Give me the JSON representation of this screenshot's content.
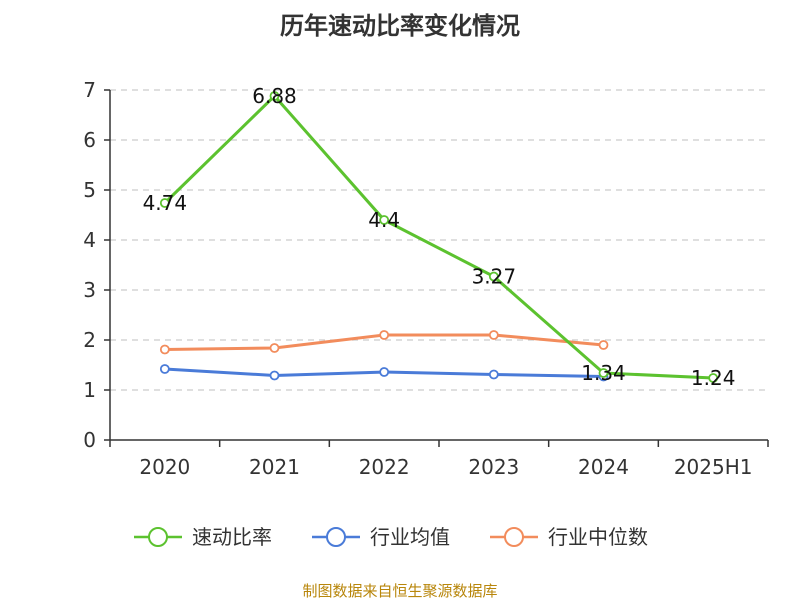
{
  "chart_data": {
    "type": "line",
    "title": "历年速动比率变化情况",
    "categories": [
      "2020",
      "2021",
      "2022",
      "2023",
      "2024",
      "2025H1"
    ],
    "ylim": [
      0,
      7
    ],
    "yticks": [
      0,
      1,
      2,
      3,
      4,
      5,
      6,
      7
    ],
    "grid": true,
    "legend_position": "bottom",
    "series": [
      {
        "name": "速动比率",
        "color": "#5cc22f",
        "values": [
          4.74,
          6.88,
          4.4,
          3.27,
          1.34,
          1.24
        ],
        "data_labels": [
          "4.74",
          "6.88",
          "4.4",
          "3.27",
          "1.34",
          "1.24"
        ]
      },
      {
        "name": "行业均值",
        "color": "#4a7bd8",
        "values": [
          1.42,
          1.29,
          1.36,
          1.31,
          1.27,
          null
        ]
      },
      {
        "name": "行业中位数",
        "color": "#f28c5c",
        "values": [
          1.81,
          1.84,
          2.1,
          2.1,
          1.9,
          null
        ]
      }
    ],
    "source": "制图数据来自恒生聚源数据库"
  }
}
